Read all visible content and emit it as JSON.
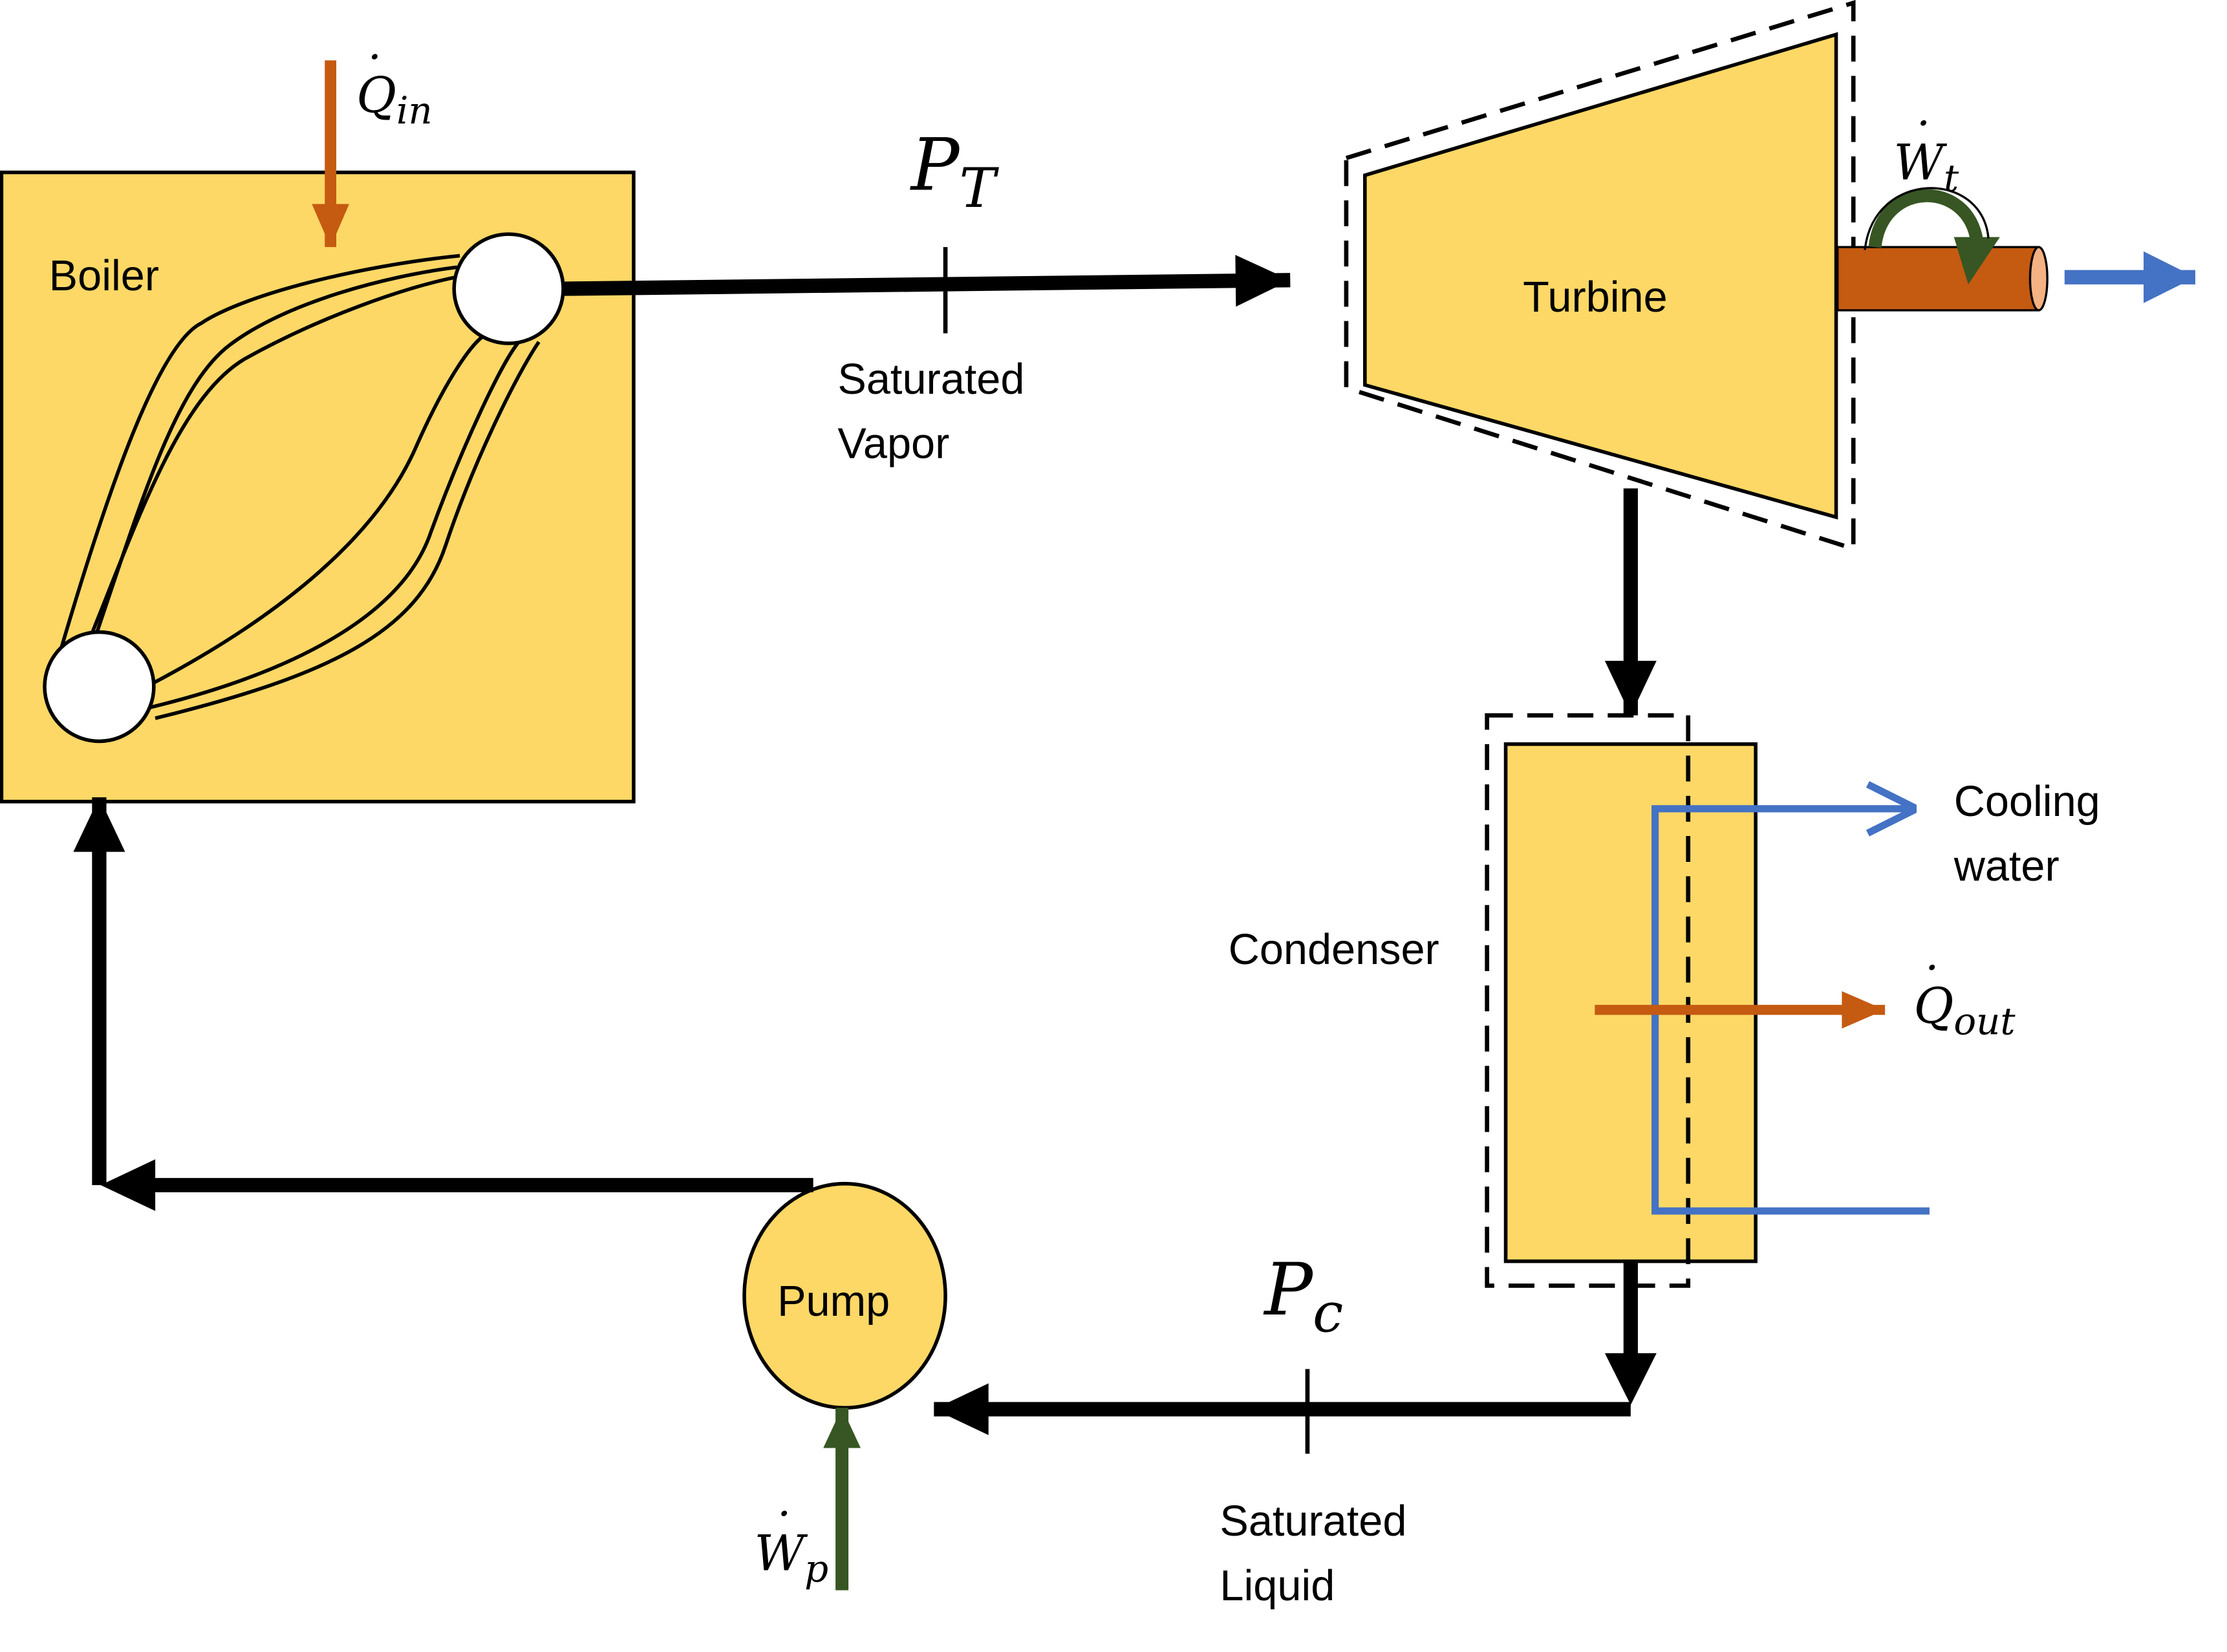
{
  "colors": {
    "component_fill": "#FDD866",
    "heat_arrow": "#C55A11",
    "work_arrow": "#375623",
    "cooling_water": "#4472C4",
    "pipe": "#000000",
    "shaft": "#C55A11"
  },
  "components": {
    "boiler": "Boiler",
    "turbine": "Turbine",
    "condenser": "Condenser",
    "pump": "Pump"
  },
  "symbols": {
    "q_in": {
      "base": "Q",
      "sub": "in"
    },
    "w_t": {
      "base": "W",
      "sub": "t"
    },
    "q_out": {
      "base": "Q",
      "sub": "out"
    },
    "w_p": {
      "base": "W",
      "sub": "p"
    },
    "p_t": {
      "base": "P",
      "sub": "T"
    },
    "p_c": {
      "base": "P",
      "sub": "c"
    }
  },
  "state_labels": {
    "turbine_inlet": {
      "line1": "Saturated",
      "line2": "Vapor"
    },
    "pump_inlet": {
      "line1": "Saturated",
      "line2": "Liquid"
    }
  },
  "cooling_water": {
    "line1": "Cooling",
    "line2": "water"
  }
}
